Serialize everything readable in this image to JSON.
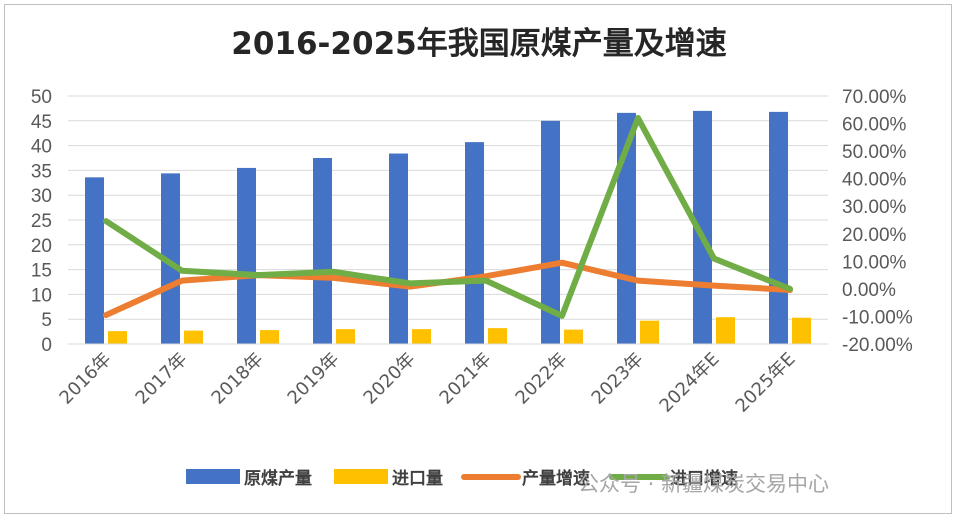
{
  "chart_data": {
    "type": "bar",
    "title": "2016-2025年我国原煤产量及增速",
    "categories": [
      "2016年",
      "2017年",
      "2018年",
      "2019年",
      "2020年",
      "2021年",
      "2022年",
      "2023年",
      "2024年E",
      "2025年E"
    ],
    "y_left": {
      "min": 0,
      "max": 50,
      "step": 5,
      "ticks": [
        "0",
        "5",
        "10",
        "15",
        "20",
        "25",
        "30",
        "35",
        "40",
        "45",
        "50"
      ]
    },
    "y_right": {
      "min": -20,
      "max": 70,
      "step": 10,
      "ticks": [
        "-20.00%",
        "-10.00%",
        "0.00%",
        "10.00%",
        "20.00%",
        "30.00%",
        "40.00%",
        "50.00%",
        "60.00%",
        "70.00%"
      ]
    },
    "grid": true,
    "legend_position": "bottom",
    "series": [
      {
        "name": "原煤产量",
        "type": "bar",
        "axis": "left",
        "color": "#4472c4",
        "values": [
          33.6,
          34.4,
          35.5,
          37.5,
          38.4,
          40.7,
          45.0,
          46.6,
          47.0,
          46.8
        ]
      },
      {
        "name": "进口量",
        "type": "bar",
        "axis": "left",
        "color": "#ffc000",
        "values": [
          2.6,
          2.7,
          2.8,
          3.0,
          3.0,
          3.2,
          2.9,
          4.7,
          5.4,
          5.3
        ]
      },
      {
        "name": "产量增速",
        "type": "line",
        "axis": "right",
        "color": "#ed7d31",
        "values": [
          -9.5,
          3.0,
          5.0,
          4.0,
          0.8,
          4.6,
          9.5,
          3.0,
          1.2,
          -0.4
        ]
      },
      {
        "name": "进口增速",
        "type": "line",
        "axis": "right",
        "color": "#70ad47",
        "values": [
          24.6,
          6.6,
          5.0,
          6.2,
          2.0,
          3.0,
          -9.8,
          62.0,
          11.0,
          0.0
        ]
      }
    ]
  },
  "watermark": "公众号 · 新疆煤炭交易中心"
}
